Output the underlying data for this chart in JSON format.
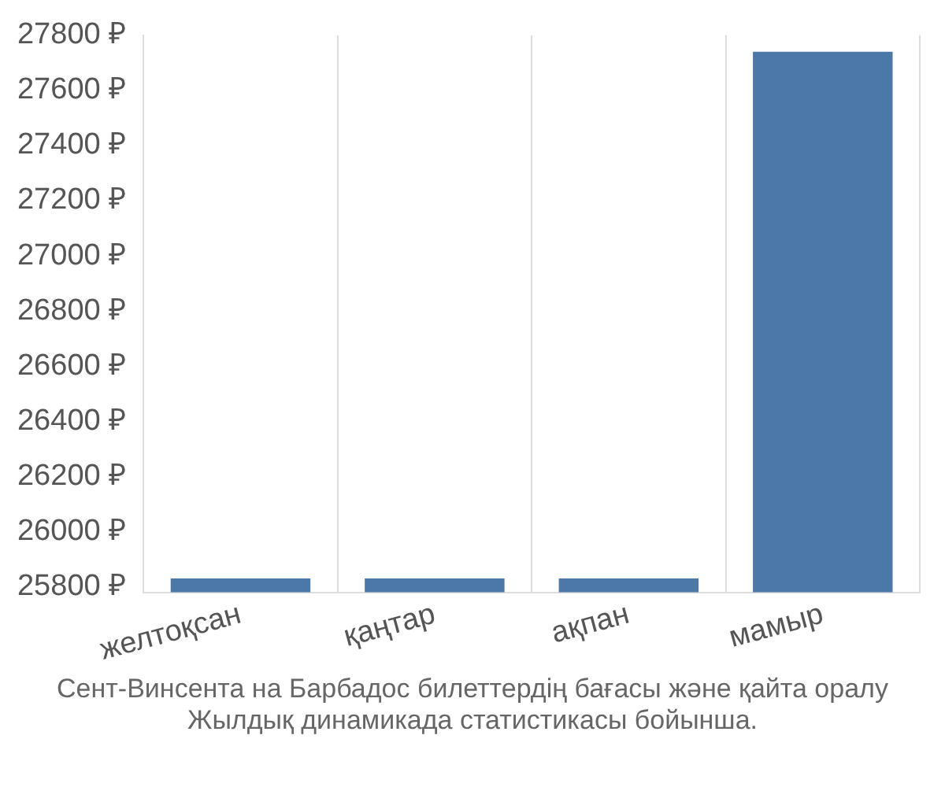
{
  "chart_data": {
    "type": "bar",
    "categories": [
      "желтоқсан",
      "қаңтар",
      "ақпан",
      "мамыр"
    ],
    "values": [
      25830,
      25830,
      25830,
      27740
    ],
    "color": "#4c78a8",
    "ylim": [
      25780,
      27800
    ],
    "yticks": [
      {
        "value": 25800,
        "label": "25800 ₽"
      },
      {
        "value": 26000,
        "label": "26000 ₽"
      },
      {
        "value": 26200,
        "label": "26200 ₽"
      },
      {
        "value": 26400,
        "label": "26400 ₽"
      },
      {
        "value": 26600,
        "label": "26600 ₽"
      },
      {
        "value": 26800,
        "label": "26800 ₽"
      },
      {
        "value": 27000,
        "label": "27000 ₽"
      },
      {
        "value": 27200,
        "label": "27200 ₽"
      },
      {
        "value": 27400,
        "label": "27400 ₽"
      },
      {
        "value": 27600,
        "label": "27600 ₽"
      },
      {
        "value": 27800,
        "label": "27800 ₽"
      }
    ],
    "grid": "x",
    "annotations": [
      "Сент-Винсента на Барбадос билеттердің бағасы және қайта оралу",
      "Жылдық динамикада статистикасы бойынша."
    ]
  }
}
